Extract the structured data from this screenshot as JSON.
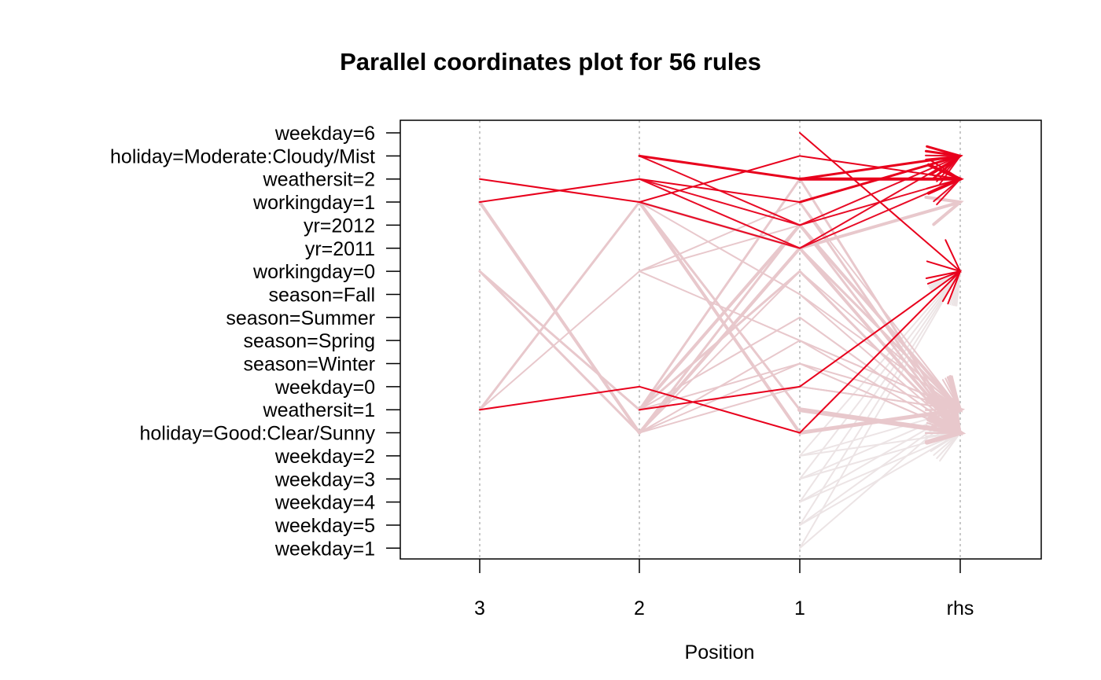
{
  "chart_data": {
    "type": "parallel-coordinates",
    "title": "Parallel coordinates plot for 56 rules",
    "xlabel": "Position",
    "x_categories": [
      "3",
      "2",
      "1",
      "rhs"
    ],
    "y_items": [
      "weekday=6",
      "holiday=Moderate:Cloudy/Mist",
      "weathersit=2",
      "workingday=1",
      "yr=2012",
      "yr=2011",
      "workingday=0",
      "season=Fall",
      "season=Summer",
      "season=Spring",
      "season=Winter",
      "weekday=0",
      "weathersit=1",
      "holiday=Good:Clear/Sunny",
      "weekday=2",
      "weekday=3",
      "weekday=4",
      "weekday=5",
      "weekday=1"
    ],
    "colors": {
      "high": "#e8001c",
      "low": "#e8c8cc",
      "lowest": "#ece4e5"
    },
    "grid": "vertical dotted",
    "rules": [
      {
        "path": [
          2,
          3,
          1,
          2
        ],
        "shade": 0.95,
        "width": 2
      },
      {
        "path": [
          3,
          2,
          3,
          1
        ],
        "shade": 0.95,
        "width": 2
      },
      {
        "path": [
          null,
          1,
          2,
          1
        ],
        "shade": 0.95,
        "width": 3
      },
      {
        "path": [
          null,
          1,
          4,
          2
        ],
        "shade": 0.9,
        "width": 2
      },
      {
        "path": [
          null,
          2,
          4,
          1
        ],
        "shade": 0.9,
        "width": 2
      },
      {
        "path": [
          null,
          2,
          5,
          2
        ],
        "shade": 0.9,
        "width": 2
      },
      {
        "path": [
          null,
          3,
          5,
          1
        ],
        "shade": 0.9,
        "width": 2
      },
      {
        "path": [
          null,
          null,
          3,
          1
        ],
        "shade": 0.95,
        "width": 3
      },
      {
        "path": [
          null,
          null,
          2,
          2
        ],
        "shade": 0.95,
        "width": 4
      },
      {
        "path": [
          null,
          null,
          0,
          6
        ],
        "shade": 1.0,
        "width": 2
      },
      {
        "path": [
          12,
          11,
          13,
          6
        ],
        "shade": 1.0,
        "width": 2
      },
      {
        "path": [
          null,
          12,
          11,
          6
        ],
        "shade": 1.0,
        "width": 2
      },
      {
        "path": [
          3,
          13,
          5,
          13
        ],
        "shade": 0.05,
        "width": 4
      },
      {
        "path": [
          6,
          13,
          4,
          12
        ],
        "shade": 0.05,
        "width": 3
      },
      {
        "path": [
          12,
          6,
          3,
          12
        ],
        "shade": 0.05,
        "width": 2
      },
      {
        "path": [
          6,
          12,
          2,
          13
        ],
        "shade": 0.05,
        "width": 3
      },
      {
        "path": [
          12,
          3,
          5,
          12
        ],
        "shade": 0.05,
        "width": 3
      },
      {
        "path": [
          null,
          3,
          13,
          12
        ],
        "shade": 0.05,
        "width": 4
      },
      {
        "path": [
          null,
          3,
          12,
          13
        ],
        "shade": 0.05,
        "width": 3
      },
      {
        "path": [
          null,
          6,
          4,
          13
        ],
        "shade": 0.05,
        "width": 2
      },
      {
        "path": [
          null,
          6,
          9,
          12
        ],
        "shade": 0.05,
        "width": 2
      },
      {
        "path": [
          null,
          12,
          4,
          12
        ],
        "shade": 0.05,
        "width": 4
      },
      {
        "path": [
          null,
          12,
          6,
          13
        ],
        "shade": 0.05,
        "width": 3
      },
      {
        "path": [
          null,
          13,
          5,
          3
        ],
        "shade": 0.05,
        "width": 4
      },
      {
        "path": [
          null,
          13,
          6,
          13
        ],
        "shade": 0.05,
        "width": 2
      },
      {
        "path": [
          null,
          13,
          9,
          12
        ],
        "shade": 0.05,
        "width": 2
      },
      {
        "path": [
          null,
          13,
          10,
          13
        ],
        "shade": 0.05,
        "width": 2
      },
      {
        "path": [
          null,
          12,
          8,
          13
        ],
        "shade": 0.05,
        "width": 2
      },
      {
        "path": [
          null,
          13,
          11,
          12
        ],
        "shade": 0.05,
        "width": 2
      },
      {
        "path": [
          null,
          12,
          10,
          13
        ],
        "shade": 0.05,
        "width": 2
      },
      {
        "path": [
          null,
          3,
          7,
          13
        ],
        "shade": 0.05,
        "width": 2
      },
      {
        "path": [
          null,
          null,
          12,
          13
        ],
        "shade": 0.05,
        "width": 6
      },
      {
        "path": [
          null,
          null,
          13,
          12
        ],
        "shade": 0.05,
        "width": 5
      },
      {
        "path": [
          null,
          null,
          3,
          13
        ],
        "shade": 0.05,
        "width": 3
      },
      {
        "path": [
          null,
          null,
          6,
          12
        ],
        "shade": 0.05,
        "width": 2
      },
      {
        "path": [
          null,
          null,
          7,
          12
        ],
        "shade": 0.05,
        "width": 2
      },
      {
        "path": [
          null,
          null,
          8,
          13
        ],
        "shade": 0.05,
        "width": 2
      },
      {
        "path": [
          null,
          null,
          9,
          13
        ],
        "shade": 0.05,
        "width": 2
      },
      {
        "path": [
          null,
          null,
          10,
          12
        ],
        "shade": 0.05,
        "width": 2
      },
      {
        "path": [
          null,
          null,
          11,
          12
        ],
        "shade": 0.05,
        "width": 2
      },
      {
        "path": [
          null,
          null,
          14,
          6
        ],
        "shade": 0.0,
        "width": 2
      },
      {
        "path": [
          null,
          null,
          15,
          6
        ],
        "shade": 0.0,
        "width": 2
      },
      {
        "path": [
          null,
          null,
          16,
          6
        ],
        "shade": 0.0,
        "width": 2
      },
      {
        "path": [
          null,
          null,
          17,
          6
        ],
        "shade": 0.0,
        "width": 2
      },
      {
        "path": [
          null,
          null,
          18,
          6
        ],
        "shade": 0.0,
        "width": 2
      },
      {
        "path": [
          null,
          null,
          14,
          13
        ],
        "shade": 0.0,
        "width": 2
      },
      {
        "path": [
          null,
          null,
          15,
          13
        ],
        "shade": 0.0,
        "width": 2
      },
      {
        "path": [
          null,
          null,
          16,
          12
        ],
        "shade": 0.0,
        "width": 2
      },
      {
        "path": [
          null,
          null,
          17,
          13
        ],
        "shade": 0.0,
        "width": 2
      },
      {
        "path": [
          null,
          null,
          18,
          12
        ],
        "shade": 0.0,
        "width": 2
      },
      {
        "path": [
          null,
          null,
          14,
          12
        ],
        "shade": 0.0,
        "width": 2
      },
      {
        "path": [
          null,
          null,
          15,
          12
        ],
        "shade": 0.0,
        "width": 2
      },
      {
        "path": [
          null,
          null,
          16,
          13
        ],
        "shade": 0.0,
        "width": 2
      },
      {
        "path": [
          null,
          null,
          17,
          12
        ],
        "shade": 0.0,
        "width": 2
      },
      {
        "path": [
          null,
          null,
          4,
          13
        ],
        "shade": 0.05,
        "width": 3
      },
      {
        "path": [
          null,
          null,
          5,
          12
        ],
        "shade": 0.05,
        "width": 3
      }
    ]
  }
}
